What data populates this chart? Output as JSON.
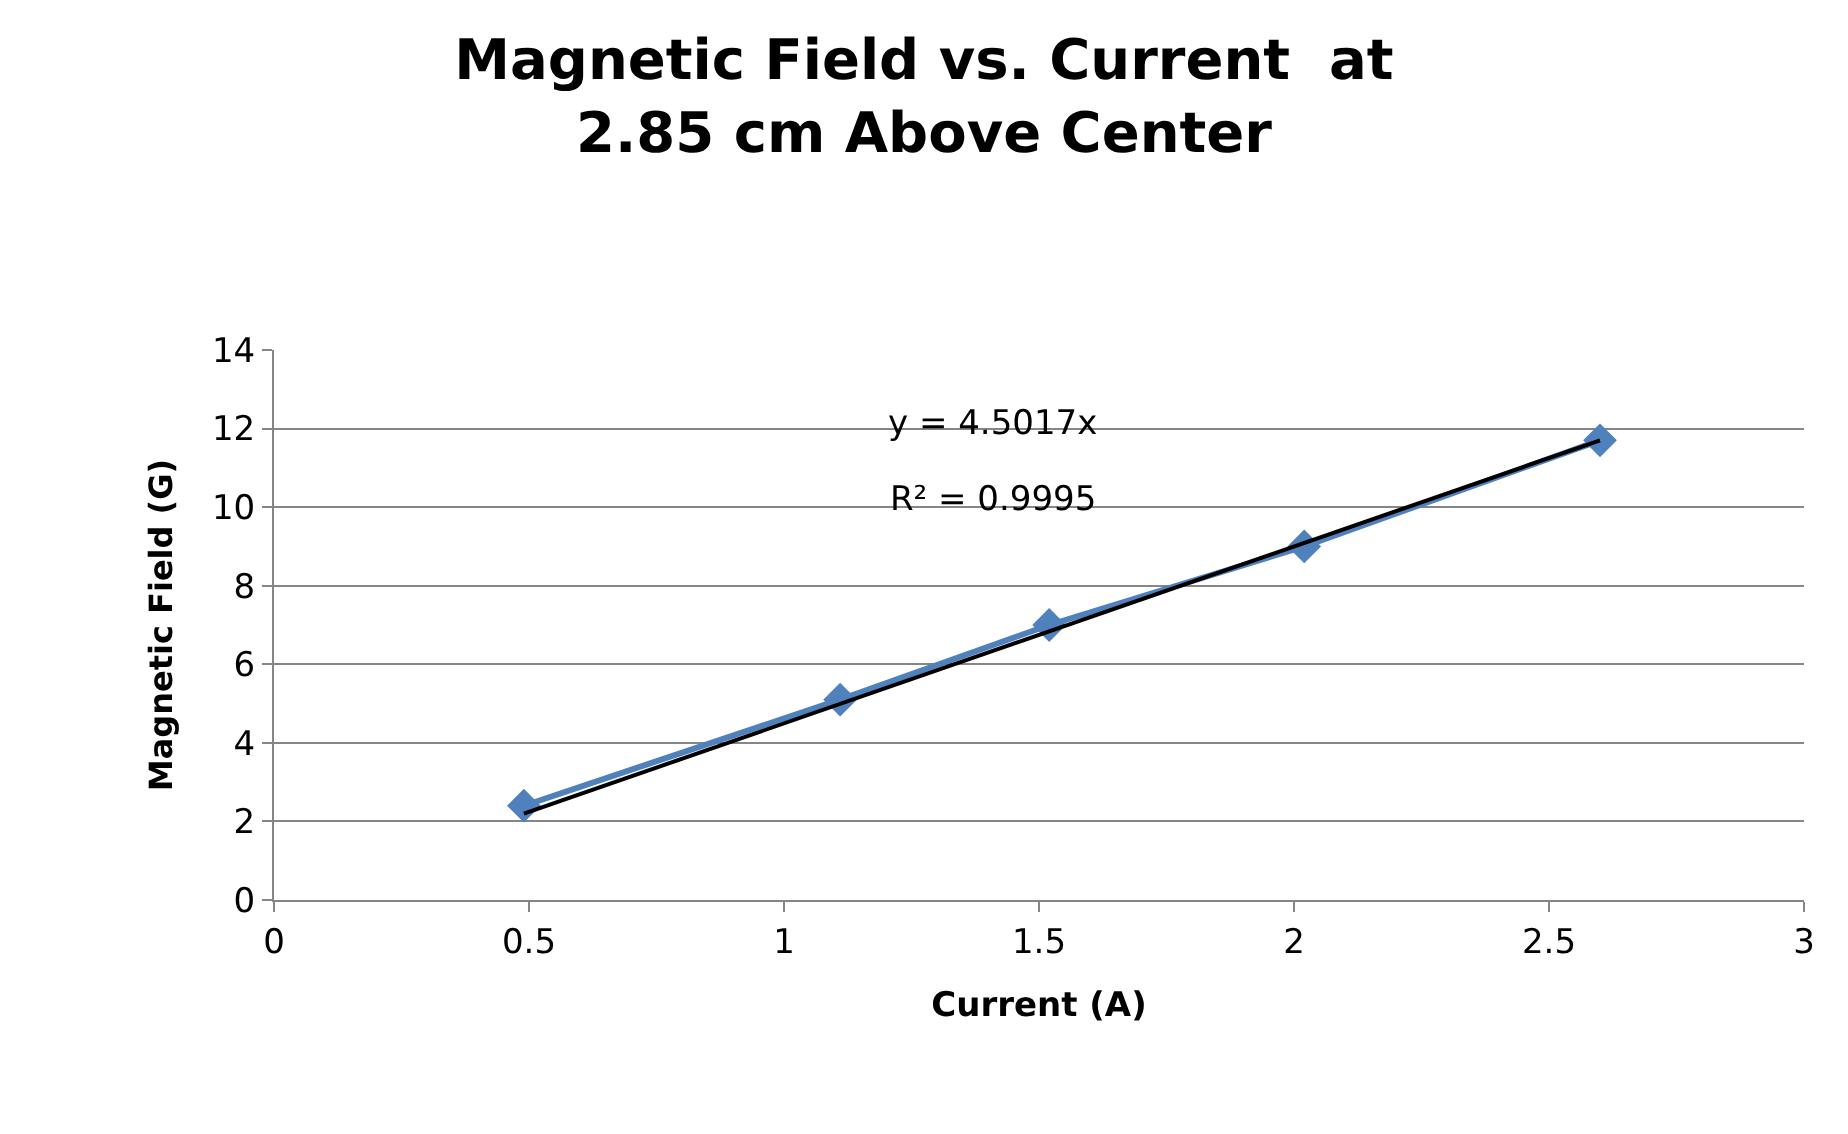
{
  "chart_data": {
    "type": "line",
    "title": "Magnetic Field vs. Current  at\n2.85 cm Above Center",
    "xlabel": "Current (A)",
    "ylabel": "Magnetic Field (G)",
    "x": [
      0.49,
      1.11,
      1.52,
      2.02,
      2.6
    ],
    "series": [
      {
        "color": "#4f81bd",
        "marker": "diamond",
        "values": [
          2.4,
          5.1,
          7.0,
          9.0,
          11.7
        ]
      },
      {
        "color": "#000000",
        "marker": "none",
        "x": [
          0.49,
          2.6
        ],
        "values": [
          2.2,
          11.7
        ]
      }
    ],
    "xlim": [
      0,
      3
    ],
    "xticks": [
      0,
      0.5,
      1,
      1.5,
      2,
      2.5,
      3
    ],
    "ylim": [
      0,
      14
    ],
    "yticks": [
      0,
      2,
      4,
      6,
      8,
      10,
      12,
      14
    ],
    "grid": "y",
    "annotations": [
      "y = 4.5017x",
      "R² = 0.9995"
    ]
  }
}
